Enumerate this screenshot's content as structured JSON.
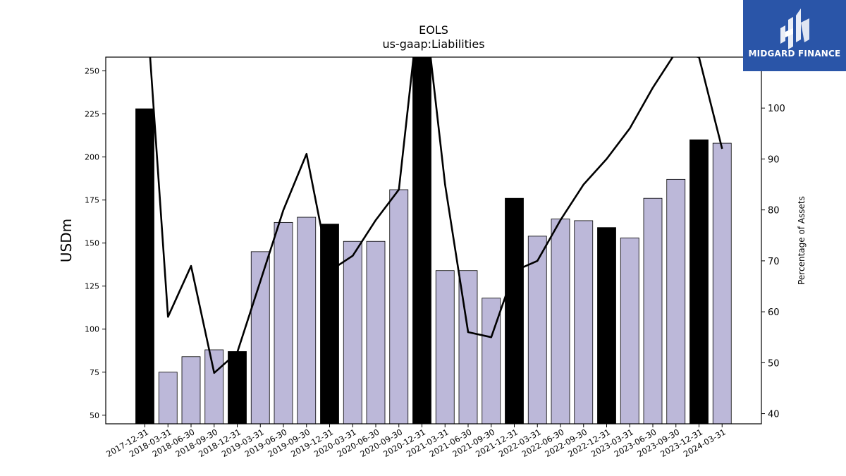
{
  "chart_data": {
    "type": "bar",
    "title": "EOLS",
    "subtitle": "us-gaap:Liabilities",
    "ylabel": "USDm",
    "y2label": "Percentage of Assets",
    "ylim": [
      45,
      258
    ],
    "y2lim": [
      38,
      110
    ],
    "yticks": [
      50,
      75,
      100,
      125,
      150,
      175,
      200,
      225,
      250
    ],
    "y2ticks": [
      40,
      50,
      60,
      70,
      80,
      90,
      100
    ],
    "grid": false,
    "categories": [
      "2017-12-31",
      "2018-03-31",
      "2018-06-30",
      "2018-09-30",
      "2018-12-31",
      "2019-03-31",
      "2019-06-30",
      "2019-09-30",
      "2019-12-31",
      "2020-03-31",
      "2020-06-30",
      "2020-09-30",
      "2020-12-31",
      "2021-03-31",
      "2021-06-30",
      "2021-09-30",
      "2021-12-31",
      "2022-03-31",
      "2022-06-30",
      "2022-09-30",
      "2022-12-31",
      "2023-03-31",
      "2023-06-30",
      "2023-09-30",
      "2023-12-31",
      "2024-03-31"
    ],
    "series": [
      {
        "type": "bar",
        "values": [
          228,
          75,
          84,
          88,
          87,
          145,
          162,
          165,
          161,
          151,
          151,
          181,
          260,
          134,
          134,
          118,
          176,
          154,
          164,
          163,
          159,
          153,
          176,
          187,
          210,
          208
        ],
        "colors": [
          "#000000",
          "#bcb8d9",
          "#bcb8d9",
          "#bcb8d9",
          "#000000",
          "#bcb8d9",
          "#bcb8d9",
          "#bcb8d9",
          "#000000",
          "#bcb8d9",
          "#bcb8d9",
          "#bcb8d9",
          "#000000",
          "#bcb8d9",
          "#bcb8d9",
          "#bcb8d9",
          "#000000",
          "#bcb8d9",
          "#bcb8d9",
          "#bcb8d9",
          "#000000",
          "#bcb8d9",
          "#bcb8d9",
          "#bcb8d9",
          "#000000",
          "#bcb8d9"
        ]
      },
      {
        "type": "line",
        "axis": "right",
        "values": [
          125,
          59,
          69,
          48,
          52,
          66,
          80,
          91,
          68,
          71,
          78,
          84,
          125,
          85,
          56,
          55,
          68,
          70,
          78,
          85,
          90,
          96,
          104,
          111,
          110,
          92
        ],
        "color": "#000000"
      }
    ]
  },
  "logo": {
    "text": "MIDGARD FINANCE",
    "color": "#2a55a8"
  }
}
